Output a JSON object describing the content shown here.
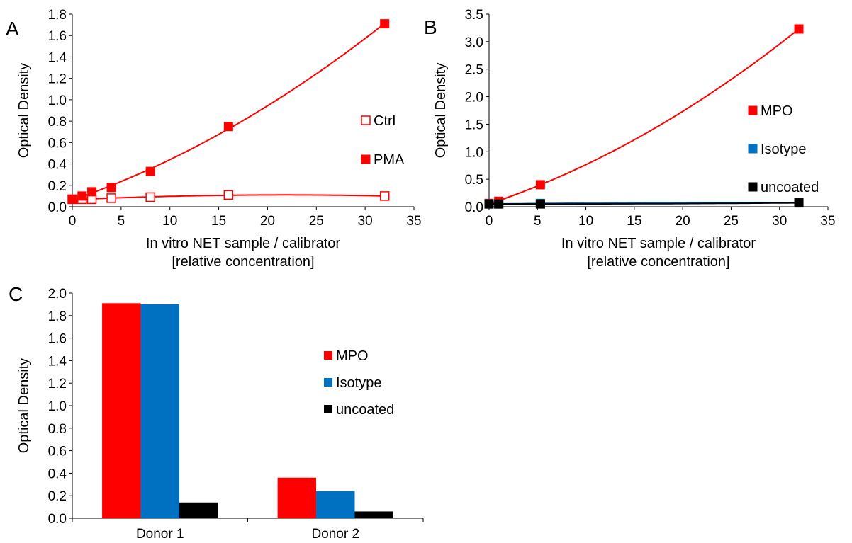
{
  "panels": {
    "a": {
      "label": "A"
    },
    "b": {
      "label": "B"
    },
    "c": {
      "label": "C"
    }
  },
  "colors": {
    "red": "#ff0000",
    "blue": "#0070c0",
    "black": "#000000"
  },
  "chart_data": [
    {
      "type": "scatter",
      "panel": "A",
      "ylabel": "Optical Density",
      "xlabel": [
        "In vitro NET sample / calibrator",
        "[relative concentration]"
      ],
      "xlim": [
        0,
        35
      ],
      "ylim": [
        0,
        1.8
      ],
      "xticks": [
        "0",
        "5",
        "10",
        "15",
        "20",
        "25",
        "30",
        "35"
      ],
      "yticks": [
        "0.0",
        "0.2",
        "0.4",
        "0.6",
        "0.8",
        "1.0",
        "1.2",
        "1.4",
        "1.6",
        "1.8"
      ],
      "grid": false,
      "legend_position": "right",
      "series": [
        {
          "name": "Ctrl",
          "marker": "open-square",
          "color": "#ff0000",
          "x": [
            0,
            1,
            2,
            4,
            8,
            16,
            32
          ],
          "y": [
            0.07,
            0.07,
            0.07,
            0.08,
            0.09,
            0.11,
            0.1
          ],
          "trendline": "polynomial"
        },
        {
          "name": "PMA",
          "marker": "filled-square",
          "color": "#ff0000",
          "x": [
            0,
            1,
            2,
            4,
            8,
            16,
            32
          ],
          "y": [
            0.07,
            0.1,
            0.14,
            0.18,
            0.33,
            0.75,
            1.71
          ],
          "trendline": "polynomial"
        }
      ]
    },
    {
      "type": "scatter",
      "panel": "B",
      "ylabel": "Optical Density",
      "xlabel": [
        "In vitro NET sample / calibrator",
        "[relative concentration]"
      ],
      "xlim": [
        0,
        35
      ],
      "ylim": [
        0,
        3.5
      ],
      "xticks": [
        "0",
        "5",
        "10",
        "15",
        "20",
        "25",
        "30",
        "35"
      ],
      "yticks": [
        "0.0",
        "0.5",
        "1.0",
        "1.5",
        "2.0",
        "2.5",
        "3.0",
        "3.5"
      ],
      "grid": false,
      "legend_position": "right",
      "series": [
        {
          "name": "MPO",
          "marker": "filled-square",
          "color": "#ff0000",
          "x": [
            0,
            1,
            5.3,
            32
          ],
          "y": [
            0.06,
            0.1,
            0.4,
            3.23
          ],
          "trendline": "polynomial"
        },
        {
          "name": "Isotype",
          "marker": "filled-square",
          "color": "#0070c0",
          "x": [
            0,
            1,
            5.3,
            32
          ],
          "y": [
            0.05,
            0.05,
            0.06,
            0.07
          ],
          "trendline": "polynomial"
        },
        {
          "name": "uncoated",
          "marker": "filled-square",
          "color": "#000000",
          "x": [
            0,
            1,
            5.3,
            32
          ],
          "y": [
            0.05,
            0.05,
            0.05,
            0.07
          ],
          "trendline": "polynomial"
        }
      ]
    },
    {
      "type": "bar",
      "panel": "C",
      "ylabel": "Optical Density",
      "categories": [
        "Donor 1",
        "Donor 2"
      ],
      "ylim": [
        0,
        2.0
      ],
      "yticks": [
        "0.0",
        "0.2",
        "0.4",
        "0.6",
        "0.8",
        "1.0",
        "1.2",
        "1.4",
        "1.6",
        "1.8",
        "2.0"
      ],
      "grid": false,
      "legend_position": "right",
      "series": [
        {
          "name": "MPO",
          "color": "#ff0000",
          "values": [
            1.91,
            0.36
          ]
        },
        {
          "name": "Isotype",
          "color": "#0070c0",
          "values": [
            1.9,
            0.24
          ]
        },
        {
          "name": "uncoated",
          "color": "#000000",
          "values": [
            0.14,
            0.06
          ]
        }
      ]
    }
  ]
}
